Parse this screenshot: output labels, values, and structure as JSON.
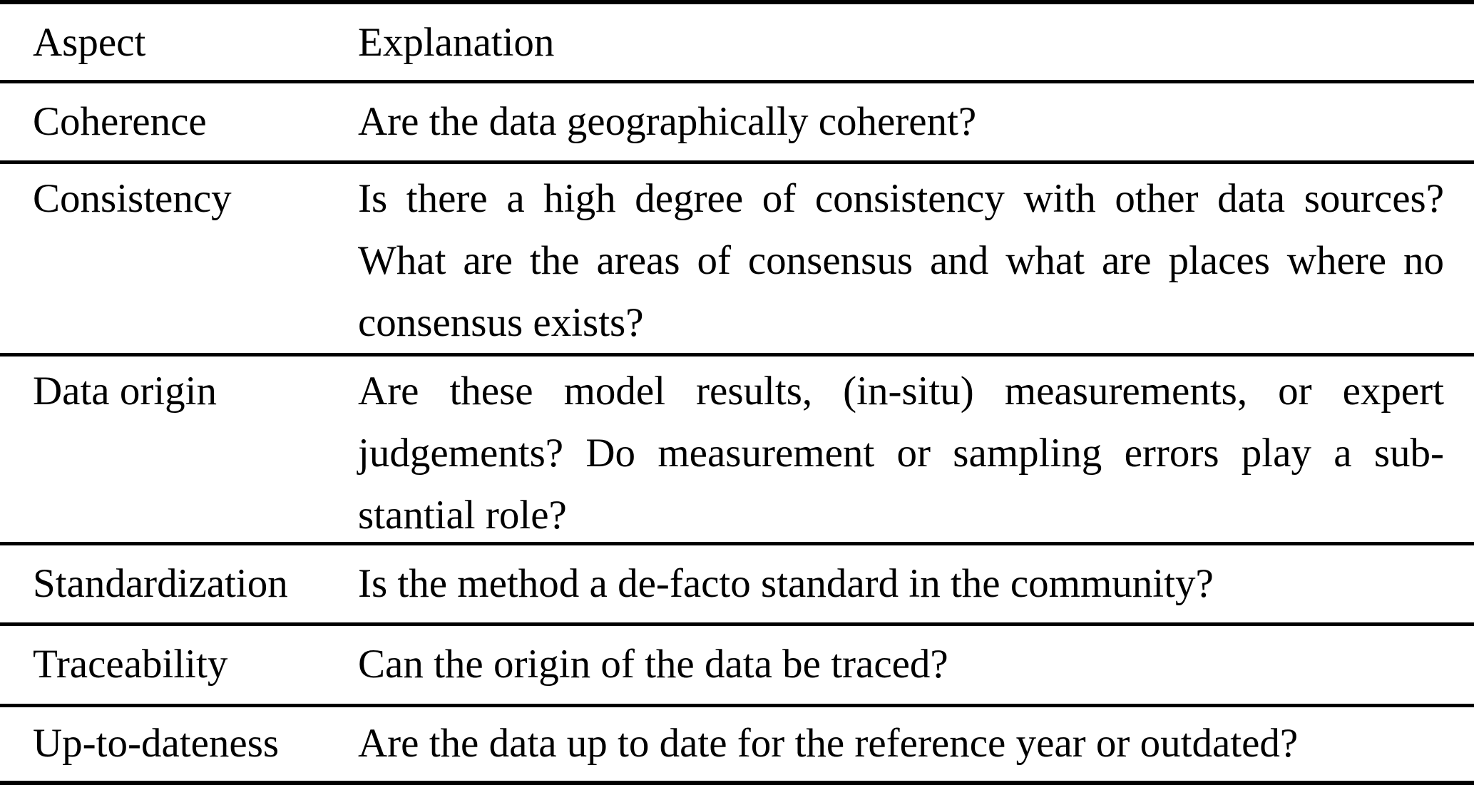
{
  "table": {
    "columns": {
      "aspect": "Aspect",
      "explanation": "Explanation"
    },
    "rows": [
      {
        "aspect": "Coherence",
        "explanation": "Are the data geographically coherent?",
        "lines": [
          {
            "text": "Are the data geographically coherent?",
            "justify": false
          }
        ]
      },
      {
        "aspect": "Consistency",
        "explanation": "Is there a high degree of consistency with other data sources? What are the areas of consensus and what are places where no consensus exists?",
        "lines": [
          {
            "text": "Is there a high degree of consistency with other data sources?",
            "justify": true
          },
          {
            "text": "What are the areas of consensus and what are places where no",
            "justify": true
          },
          {
            "text": "consensus exists?",
            "justify": false
          }
        ]
      },
      {
        "aspect": "Data origin",
        "explanation": "Are these model results, (in-situ) measurements, or expert judgements? Do measurement or sampling errors play a substantial role?",
        "lines": [
          {
            "text": "Are these model results, (in-situ) measurements, or expert",
            "justify": true
          },
          {
            "text": "judgements? Do measurement or sampling errors play a sub-",
            "justify": true
          },
          {
            "text": "stantial role?",
            "justify": false
          }
        ]
      },
      {
        "aspect": "Standardization",
        "explanation": "Is the method a de-facto standard in the community?",
        "lines": [
          {
            "text": "Is the method a de-facto standard in the community?",
            "justify": false
          }
        ]
      },
      {
        "aspect": "Traceability",
        "explanation": "Can the origin of the data be traced?",
        "lines": [
          {
            "text": "Can the origin of the data be traced?",
            "justify": false
          }
        ]
      },
      {
        "aspect": "Up-to-dateness",
        "explanation": "Are the data up to date for the reference year or outdated?",
        "lines": [
          {
            "text": "Are the data up to date for the reference year or outdated?",
            "justify": false
          }
        ]
      }
    ],
    "text_color": "#000000",
    "rule_color": "#000000",
    "background_color": "#ffffff"
  }
}
